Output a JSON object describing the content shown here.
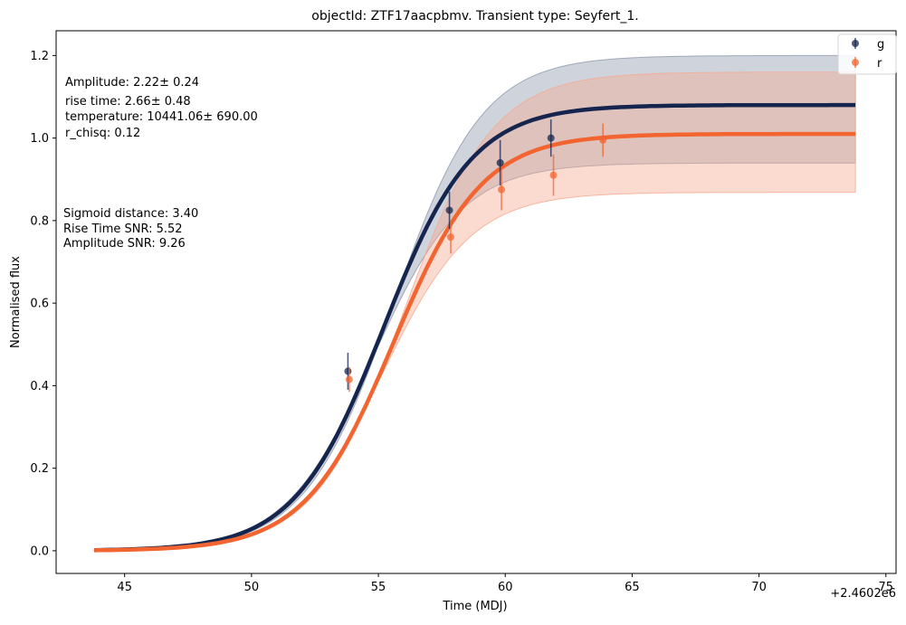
{
  "chart_data": {
    "type": "line",
    "title": "objectId: ZTF17aacpbmv. Transient type: Seyfert_1.",
    "xlabel": "Time (MDJ)",
    "ylabel": "Normalised flux",
    "x_offset_label": "+2.4602e6",
    "xlim": [
      42.3,
      75.4
    ],
    "ylim": [
      -0.055,
      1.26
    ],
    "xticks": [
      45,
      50,
      55,
      60,
      65,
      70,
      75
    ],
    "yticks": [
      0.0,
      0.2,
      0.4,
      0.6,
      0.8,
      1.0,
      1.2
    ],
    "xtick_labels": [
      "45",
      "50",
      "55",
      "60",
      "65",
      "70",
      "75"
    ],
    "ytick_labels": [
      "0.0",
      "0.2",
      "0.4",
      "0.6",
      "0.8",
      "1.0",
      "1.2"
    ],
    "grid": false,
    "legend_position": "top-right",
    "series": [
      {
        "name": "g",
        "color": "#16254e",
        "band_color": "#8c98ac",
        "fit": {
          "amplitude": 1.08,
          "t0": 55.2,
          "tau": 1.75,
          "band_upper": 1.2,
          "band_lower_scale": 0.87
        },
        "points": {
          "x": [
            53.8,
            57.8,
            59.8,
            61.8
          ],
          "y": [
            0.435,
            0.825,
            0.94,
            1.0
          ],
          "yerr": [
            0.045,
            0.045,
            0.055,
            0.045
          ]
        }
      },
      {
        "name": "r",
        "color": "#f26430",
        "band_color": "#f6a98e",
        "fit": {
          "amplitude": 1.01,
          "t0": 55.6,
          "tau": 1.75,
          "band_upper": 1.16,
          "band_lower_scale": 0.86
        },
        "points": {
          "x": [
            53.85,
            57.85,
            59.85,
            61.9,
            63.85
          ],
          "y": [
            0.415,
            0.76,
            0.875,
            0.91,
            0.995
          ],
          "yerr": [
            0.03,
            0.04,
            0.05,
            0.05,
            0.04
          ]
        }
      }
    ],
    "fit_range": [
      43.8,
      73.8
    ],
    "annotations": {
      "fit_params": [
        "Amplitude: 2.22± 0.24",
        "rise time: 2.66± 0.48",
        "temperature: 10441.06± 690.00",
        "r_chisq: 0.12"
      ],
      "stats": [
        "Sigmoid distance: 3.40",
        "Rise Time SNR: 5.52",
        "Amplitude SNR: 9.26"
      ]
    }
  }
}
